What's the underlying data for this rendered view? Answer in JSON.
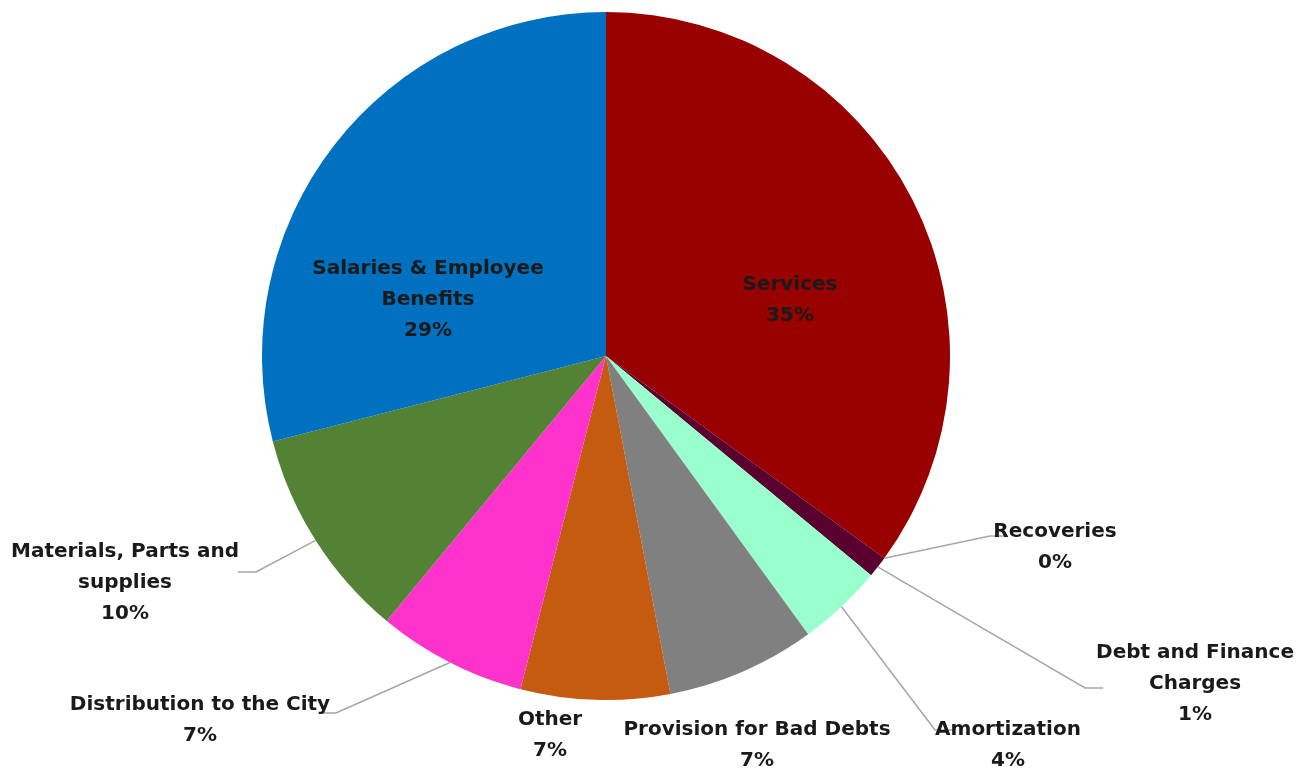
{
  "chart_data": {
    "type": "pie",
    "categories": [
      "Services",
      "Recoveries",
      "Debt and Finance Charges",
      "Amortization",
      "Provision for Bad Debts",
      "Other",
      "Distribution to the City",
      "Materials, Parts and supplies",
      "Salaries & Employee Benefits"
    ],
    "values": [
      35,
      0,
      1,
      4,
      7,
      7,
      7,
      10,
      29
    ],
    "value_labels": [
      "35%",
      "0%",
      "1%",
      "4%",
      "7%",
      "7%",
      "7%",
      "10%",
      "29%"
    ],
    "colors": [
      "#990000",
      "#1f3864",
      "#5a0030",
      "#99ffcc",
      "#808080",
      "#c55a11",
      "#ff33cc",
      "#548235",
      "#0070c0"
    ],
    "legend": false
  }
}
